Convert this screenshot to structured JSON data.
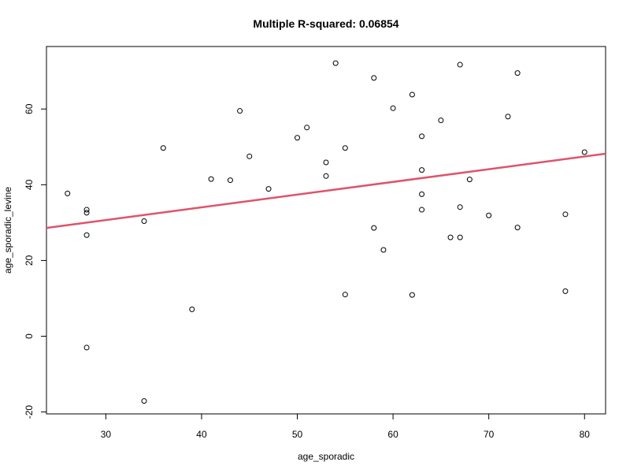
{
  "chart_data": {
    "type": "scatter",
    "title": "Multiple R-squared:  0.06854",
    "xlabel": "age_sporadic",
    "ylabel": "age_sporadic_levine",
    "xlim": [
      23.8,
      82.2
    ],
    "ylim": [
      -20.5,
      76.5
    ],
    "x_ticks": [
      30,
      40,
      50,
      60,
      70,
      80
    ],
    "y_ticks": [
      -20,
      0,
      20,
      40,
      60
    ],
    "x_tick_labels": [
      "30",
      "40",
      "50",
      "60",
      "70",
      "80"
    ],
    "y_tick_labels": [
      "-20",
      "0",
      "20",
      "40",
      "60"
    ],
    "points": [
      {
        "x": 26,
        "y": 37.7
      },
      {
        "x": 28,
        "y": 33.4
      },
      {
        "x": 28,
        "y": 32.6
      },
      {
        "x": 28,
        "y": 26.7
      },
      {
        "x": 28,
        "y": -3.0
      },
      {
        "x": 34,
        "y": 30.4
      },
      {
        "x": 34,
        "y": -17.1
      },
      {
        "x": 36,
        "y": 49.7
      },
      {
        "x": 39,
        "y": 7.1
      },
      {
        "x": 41,
        "y": 41.5
      },
      {
        "x": 43,
        "y": 41.2
      },
      {
        "x": 44,
        "y": 59.5
      },
      {
        "x": 45,
        "y": 47.5
      },
      {
        "x": 47,
        "y": 38.9
      },
      {
        "x": 50,
        "y": 52.4
      },
      {
        "x": 51,
        "y": 55.1
      },
      {
        "x": 53,
        "y": 45.9
      },
      {
        "x": 53,
        "y": 42.3
      },
      {
        "x": 54,
        "y": 72.1
      },
      {
        "x": 55,
        "y": 49.7
      },
      {
        "x": 55,
        "y": 11.0
      },
      {
        "x": 58,
        "y": 68.2
      },
      {
        "x": 58,
        "y": 28.6
      },
      {
        "x": 59,
        "y": 22.8
      },
      {
        "x": 60,
        "y": 60.2
      },
      {
        "x": 62,
        "y": 63.8
      },
      {
        "x": 62,
        "y": 10.9
      },
      {
        "x": 63,
        "y": 52.8
      },
      {
        "x": 63,
        "y": 43.9
      },
      {
        "x": 63,
        "y": 37.5
      },
      {
        "x": 63,
        "y": 33.4
      },
      {
        "x": 65,
        "y": 57.0
      },
      {
        "x": 66,
        "y": 26.1
      },
      {
        "x": 67,
        "y": 71.7
      },
      {
        "x": 67,
        "y": 34.1
      },
      {
        "x": 67,
        "y": 26.1
      },
      {
        "x": 68,
        "y": 41.4
      },
      {
        "x": 70,
        "y": 31.9
      },
      {
        "x": 72,
        "y": 58.0
      },
      {
        "x": 73,
        "y": 69.5
      },
      {
        "x": 73,
        "y": 28.7
      },
      {
        "x": 78,
        "y": 32.2
      },
      {
        "x": 78,
        "y": 11.9
      },
      {
        "x": 80,
        "y": 48.6
      }
    ],
    "regression_line": {
      "x1": 23.8,
      "y1": 28.6,
      "x2": 82.2,
      "y2": 48.2,
      "color": "#DF536B"
    },
    "point_style": "open-circle",
    "grid": false,
    "box": true
  }
}
